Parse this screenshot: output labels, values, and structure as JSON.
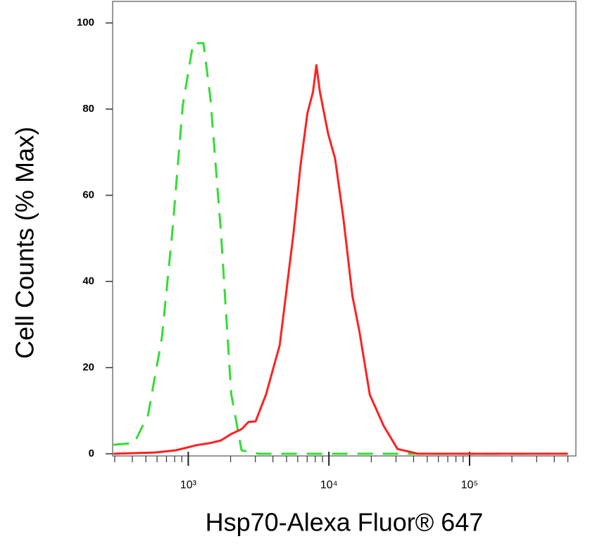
{
  "chart_data": {
    "type": "line",
    "xlabel": "Hsp70-Alexa Fluor® 647",
    "ylabel": "Cell Counts (% Max)",
    "xscale": "log",
    "xlim": [
      290,
      570000
    ],
    "ylim": [
      -0.5,
      105
    ],
    "xticks": [
      {
        "value": 1000,
        "label": "10³"
      },
      {
        "value": 10000,
        "label": "10⁴"
      },
      {
        "value": 100000,
        "label": "10⁵"
      }
    ],
    "x_minor_ticks": [
      300,
      400,
      500,
      600,
      700,
      800,
      900,
      2000,
      3000,
      4000,
      5000,
      6000,
      7000,
      8000,
      9000,
      20000,
      30000,
      40000,
      50000,
      60000,
      70000,
      80000,
      90000,
      200000,
      300000,
      400000,
      500000
    ],
    "yticks": [
      0,
      20,
      40,
      60,
      80,
      100
    ],
    "series": [
      {
        "color": "#33dd33",
        "dashed": true,
        "x": [
          294,
          413,
          518,
          650,
          771,
          914,
          1083,
          1283,
          1438,
          1706,
          2020,
          2393,
          3178,
          4467,
          500000
        ],
        "values": [
          2.1,
          2.5,
          9.0,
          27.0,
          51.5,
          80.9,
          95.3,
          95.3,
          82.5,
          51.5,
          13.9,
          0.8,
          0,
          0,
          0
        ]
      },
      {
        "color": "#ff2020",
        "dashed": false,
        "x": [
          294,
          581,
          815,
          1146,
          1438,
          1706,
          2020,
          2393,
          2685,
          3008,
          3565,
          4467,
          5610,
          6281,
          7035,
          7705,
          8150,
          8630,
          9890,
          11070,
          12680,
          14690,
          16470,
          19530,
          24500,
          30760,
          43150,
          500000
        ],
        "values": [
          0,
          0.3,
          0.8,
          2.0,
          2.5,
          3.1,
          4.6,
          5.7,
          7.4,
          7.5,
          13.7,
          25.2,
          51.3,
          66.8,
          79.1,
          84.0,
          90.2,
          84.0,
          74.2,
          68.5,
          54.6,
          36.6,
          28.4,
          13.7,
          6.5,
          1.1,
          0,
          0
        ]
      }
    ]
  }
}
